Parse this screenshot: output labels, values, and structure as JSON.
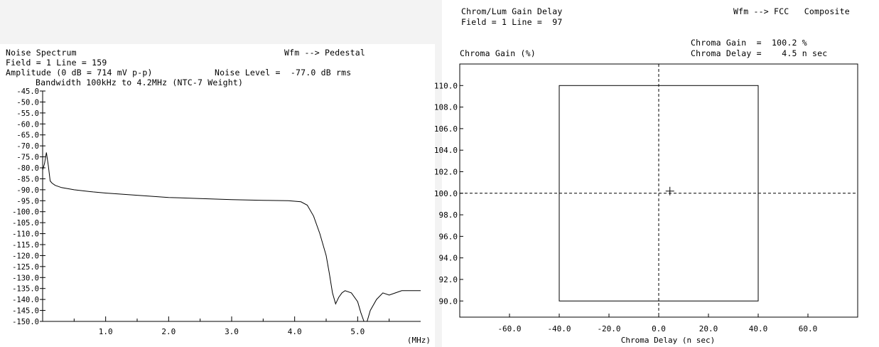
{
  "left": {
    "header": {
      "title": "Noise Spectrum",
      "field_line": "Field = 1 Line = 159",
      "amplitude": "Amplitude (0 dB = 714 mV p-p)",
      "noise_level": "Noise Level =  -77.0 dB rms",
      "bandwidth": "Bandwidth 100kHz to 4.2MHz (NTC-7 Weight)",
      "mode": "Wfm --> Pedestal"
    }
  },
  "right": {
    "header": {
      "title": "Chrom/Lum Gain Delay",
      "field_line": "Field = 1 Line =  97",
      "mode": "Wfm --> FCC   Composite",
      "gain_readout": "Chroma Gain  =  100.2 %",
      "delay_readout": "Chroma Delay =    4.5 n sec"
    }
  },
  "chart_data": [
    {
      "type": "line",
      "xlabel": "(MHz)",
      "ylabel": "",
      "xlim": [
        0,
        6.0
      ],
      "ylim": [
        -150,
        -45
      ],
      "x_ticks": [
        "1.0",
        "2.0",
        "3.0",
        "4.0",
        "5.0"
      ],
      "y_ticks": [
        "-45.0",
        "-50.0",
        "-55.0",
        "-60.0",
        "-65.0",
        "-70.0",
        "-75.0",
        "-80.0",
        "-85.0",
        "-90.0",
        "-95.0",
        "-100.0",
        "-105.0",
        "-110.0",
        "-115.0",
        "-120.0",
        "-125.0",
        "-130.0",
        "-135.0",
        "-140.0",
        "-145.0",
        "-150.0"
      ],
      "series": [
        {
          "x": [
            0.0,
            0.03,
            0.06,
            0.09,
            0.12,
            0.15,
            0.2,
            0.3,
            0.5,
            0.8,
            1.0,
            1.5,
            2.0,
            2.5,
            3.0,
            3.5,
            3.9,
            4.1,
            4.2,
            4.3,
            4.4,
            4.5,
            4.55,
            4.6,
            4.65,
            4.7,
            4.75,
            4.8,
            4.9,
            5.0,
            5.05,
            5.1,
            5.15,
            5.2,
            5.3,
            5.4,
            5.5,
            5.6,
            5.7,
            5.8,
            5.9,
            6.0
          ],
          "y": [
            -81,
            -78,
            -73,
            -79,
            -86,
            -87,
            -88,
            -89,
            -90,
            -91,
            -91.5,
            -92.5,
            -93.5,
            -94,
            -94.5,
            -94.8,
            -95,
            -95.5,
            -97,
            -102,
            -110,
            -120,
            -128,
            -137,
            -142,
            -139,
            -137,
            -136,
            -137,
            -141,
            -146,
            -150,
            -150,
            -145,
            -140,
            -137,
            -138,
            -137,
            -136,
            -136,
            -136,
            -136
          ]
        }
      ]
    },
    {
      "type": "scatter",
      "xlabel": "Chroma Delay (n sec)",
      "ylabel": "Chroma Gain (%)",
      "xlim": [
        -80,
        80
      ],
      "ylim": [
        88.5,
        112.0
      ],
      "x_ticks": [
        "-60.0",
        "-40.0",
        "-20.0",
        "0.0",
        "20.0",
        "40.0",
        "60.0"
      ],
      "y_ticks": [
        "110.0",
        "108.0",
        "106.0",
        "104.0",
        "102.0",
        "100.0",
        "98.0",
        "96.0",
        "94.0",
        "92.0",
        "90.0"
      ],
      "limit_box": {
        "x": [
          -40,
          40
        ],
        "y": [
          90,
          110
        ]
      },
      "crosshair": {
        "x": 0,
        "y": 100
      },
      "series": [
        {
          "x": [
            4.5
          ],
          "y": [
            100.2
          ]
        }
      ]
    }
  ]
}
